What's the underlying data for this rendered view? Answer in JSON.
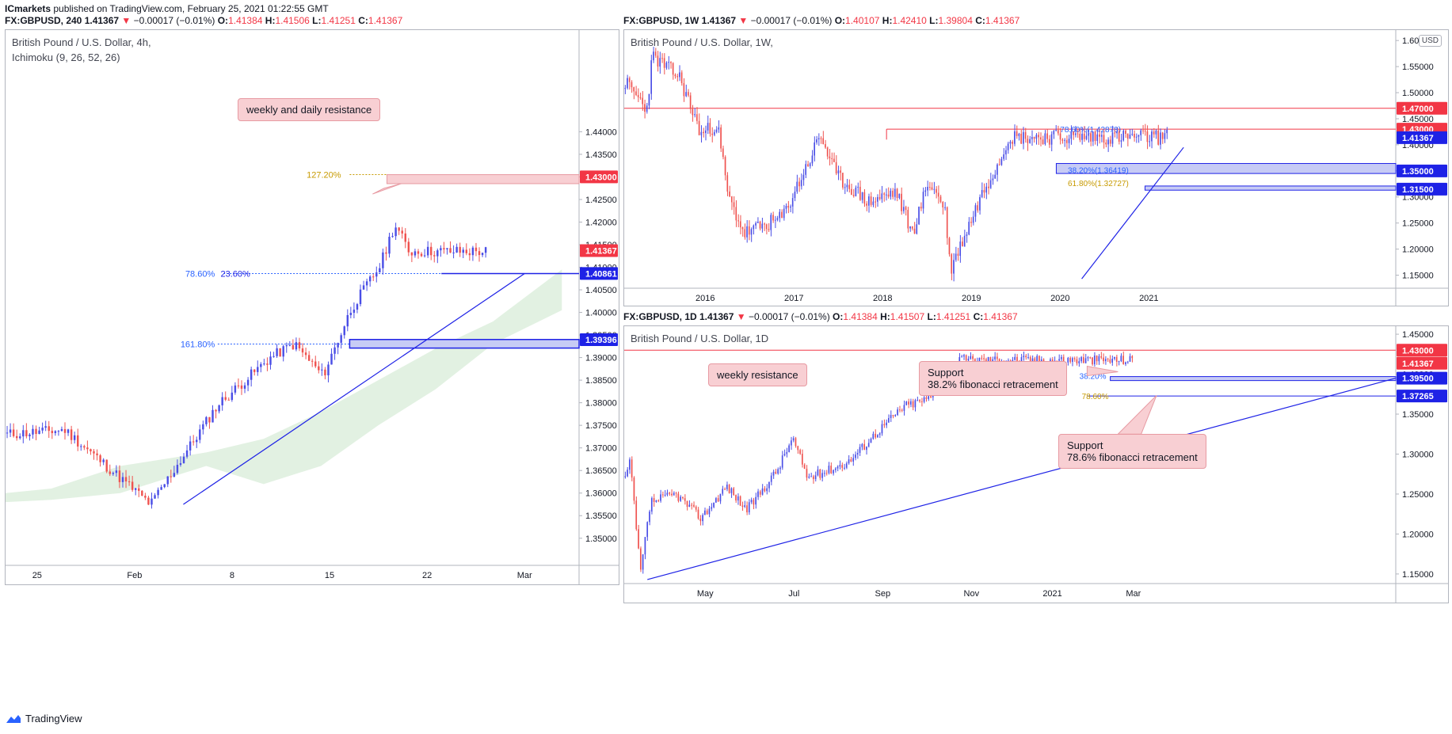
{
  "header": {
    "author": "ICmarkets",
    "published_text": " published on TradingView.com, February 25, 2021 01:22:55 GMT"
  },
  "branding": {
    "logo_label": "TradingView"
  },
  "panels": {
    "left": {
      "symbol_line": {
        "prefix": "FX:GBPUSD, 240  1.41367 ",
        "arrow": "▼",
        "change": " −0.00017 (−0.01%) ",
        "o_label": "O:",
        "o": "1.41384",
        "h_label": " H:",
        "h": "1.41506",
        "l_label": " L:",
        "l": "1.41251",
        "c_label": " C:",
        "c": "1.41367"
      },
      "title": "British Pound / U.S. Dollar, 4h,",
      "subtitle": "Ichimoku (9, 26, 52, 26)",
      "callout": "weekly and daily resistance",
      "fib_labels": {
        "f127": "127.20%",
        "f786": "78.60%",
        "f236": "23.60%",
        "f1618": "161.80%"
      }
    },
    "topright": {
      "symbol_line": {
        "prefix": "FX:GBPUSD, 1W  1.41367 ",
        "arrow": "▼",
        "change": " −0.00017 (−0.01%) ",
        "o_label": "O:",
        "o": "1.40107",
        "h_label": " H:",
        "h": "1.42410",
        "l_label": " L:",
        "l": "1.39804",
        "c_label": " C:",
        "c": "1.41367"
      },
      "title": "British Pound / U.S. Dollar, 1W,",
      "currency_button": "USD",
      "fib_labels": {
        "f786": "78.60%(1.42878)",
        "f382": "38.20%(1.36419)",
        "f618": "61.80%(1.32727)"
      }
    },
    "bottomright": {
      "symbol_line": {
        "prefix": "FX:GBPUSD, 1D  1.41367 ",
        "arrow": "▼",
        "change": " −0.00017 (−0.01%) ",
        "o_label": "O:",
        "o": "1.41384",
        "h_label": " H:",
        "h": "1.41507",
        "l_label": " L:",
        "l": "1.41251",
        "c_label": " C:",
        "c": "1.41367"
      },
      "title": "British Pound / U.S. Dollar, 1D",
      "callout_resistance": "weekly resistance",
      "callout_support1_line1": "Support",
      "callout_support1_line2": "38.2% fibonacci retracement",
      "callout_support2_line1": "Support",
      "callout_support2_line2": "78.6% fibonacci retracement",
      "fib_labels": {
        "f382": "38.20%",
        "f786": "78.60%"
      }
    }
  },
  "colors": {
    "up": "#4a4ee6",
    "down": "#ef5350",
    "resistance": "#f23645",
    "support": "#1e22e6",
    "fib_blue": "#2962ff",
    "fib_gold": "#c79a00",
    "cloud": "#d8ecd8"
  },
  "chart_data": [
    {
      "id": "left",
      "type": "candlestick",
      "title": "British Pound / U.S. Dollar, 4h,",
      "indicator": "Ichimoku (9, 26, 52, 26)",
      "ylim": [
        1.344,
        1.4625
      ],
      "y_ticks": [
        "1.35000",
        "1.35500",
        "1.36000",
        "1.36500",
        "1.37000",
        "1.37500",
        "1.38000",
        "1.38500",
        "1.39000",
        "1.39500",
        "1.40000",
        "1.40500",
        "1.41000",
        "1.41500",
        "1.42000",
        "1.42500",
        "1.43000",
        "1.43500",
        "1.44000"
      ],
      "x_ticks": [
        "25",
        "Feb",
        "8",
        "15",
        "22",
        "Mar"
      ],
      "price_labels": [
        {
          "value": 1.43,
          "text": "1.43000",
          "color": "#f23645"
        },
        {
          "value": 1.41367,
          "text": "1.41367",
          "color": "#f23645"
        },
        {
          "value": 1.40861,
          "text": "1.40861",
          "color": "#1e22e6"
        },
        {
          "value": 1.39396,
          "text": "1.39396",
          "color": "#1e22e6"
        }
      ],
      "zones": [
        {
          "from": 1.4285,
          "to": 1.4305,
          "kind": "resistance"
        },
        {
          "from": 1.3921,
          "to": 1.394,
          "kind": "support"
        }
      ],
      "trendline": [
        {
          "x": 0.31,
          "y": 1.3575
        },
        {
          "x": 0.905,
          "y": 1.4086
        }
      ],
      "last_price": 1.41367
    },
    {
      "id": "weekly",
      "type": "candlestick",
      "title": "British Pound / U.S. Dollar, 1W,",
      "ylim": [
        1.125,
        1.62
      ],
      "y_ticks": [
        "1.15000",
        "1.20000",
        "1.25000",
        "1.30000",
        "1.35000",
        "1.40000",
        "1.45000",
        "1.50000",
        "1.55000",
        "1.60000"
      ],
      "x_ticks": [
        "2016",
        "2017",
        "2018",
        "2019",
        "2020",
        "2021"
      ],
      "price_labels": [
        {
          "value": 1.47,
          "text": "1.47000",
          "color": "#f23645"
        },
        {
          "value": 1.43,
          "text": "1.43000",
          "color": "#f23645"
        },
        {
          "value": 1.41367,
          "text": "1.41367",
          "color": "#1e22e6"
        },
        {
          "value": 1.35,
          "text": "1.35000",
          "color": "#1e22e6"
        },
        {
          "value": 1.315,
          "text": "1.31500",
          "color": "#1e22e6"
        }
      ],
      "levels": [
        1.47,
        1.43
      ],
      "zones": [
        {
          "from": 1.345,
          "to": 1.3642
        },
        {
          "from": 1.313,
          "to": 1.321
        }
      ],
      "last_price": 1.41367
    },
    {
      "id": "daily",
      "type": "candlestick",
      "title": "British Pound / U.S. Dollar, 1D",
      "ylim": [
        1.138,
        1.46
      ],
      "y_ticks": [
        "1.15000",
        "1.20000",
        "1.25000",
        "1.30000",
        "1.35000",
        "1.40000",
        "1.45000"
      ],
      "x_ticks": [
        "May",
        "Jul",
        "Sep",
        "Nov",
        "2021",
        "Mar"
      ],
      "price_labels": [
        {
          "value": 1.43,
          "text": "1.43000",
          "color": "#f23645"
        },
        {
          "value": 1.41367,
          "text": "1.41367",
          "color": "#f23645"
        },
        {
          "value": 1.395,
          "text": "1.39500",
          "color": "#1e22e6"
        },
        {
          "value": 1.37265,
          "text": "1.37265",
          "color": "#1e22e6"
        }
      ],
      "levels": [
        1.43
      ],
      "zones": [
        {
          "from": 1.392,
          "to": 1.397
        }
      ],
      "last_price": 1.41367
    }
  ]
}
